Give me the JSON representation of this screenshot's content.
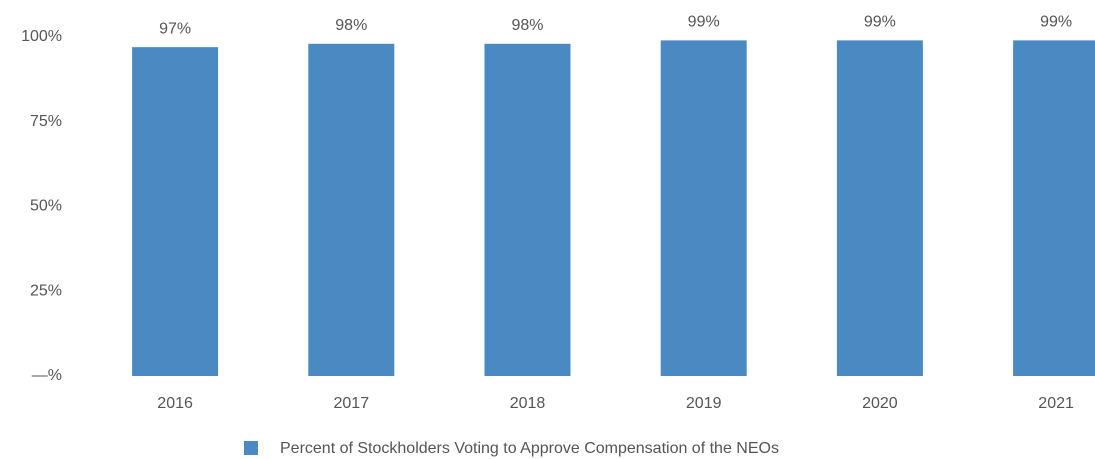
{
  "chart_data": {
    "type": "bar",
    "categories": [
      "2016",
      "2017",
      "2018",
      "2019",
      "2020",
      "2021"
    ],
    "series": [
      {
        "name": "Percent of Stockholders Voting to Approve Compensation of the NEOs",
        "color": "#4a89c2",
        "values": [
          97,
          98,
          98,
          99,
          99,
          99
        ],
        "value_labels": [
          "97%",
          "98%",
          "98%",
          "99%",
          "99%",
          "99%"
        ]
      }
    ],
    "ylim": [
      0,
      100
    ],
    "yticks": [
      {
        "value": 0,
        "label": "—%"
      },
      {
        "value": 25,
        "label": "25%"
      },
      {
        "value": 50,
        "label": "50%"
      },
      {
        "value": 75,
        "label": "75%"
      },
      {
        "value": 100,
        "label": "100%"
      }
    ],
    "grid": false,
    "legend": "bottom"
  }
}
